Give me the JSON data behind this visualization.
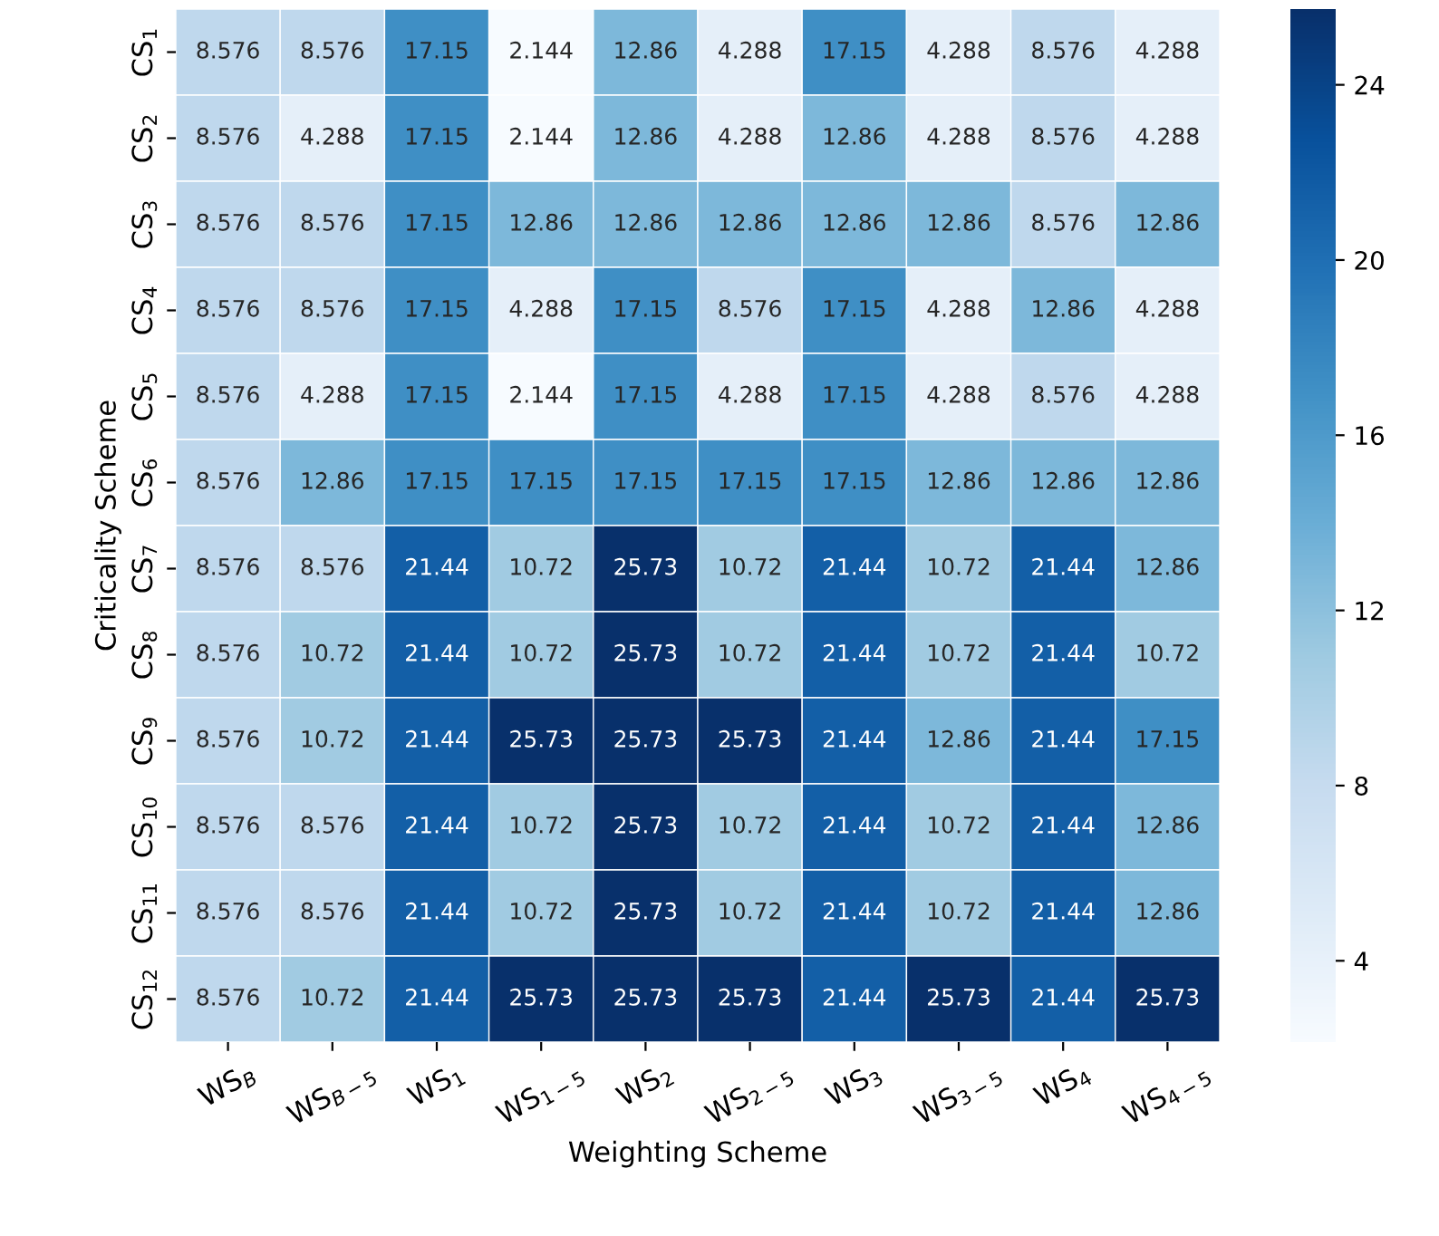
{
  "chart_data": {
    "type": "heatmap",
    "xlabel": "Weighting Scheme",
    "ylabel": "Criticality Scheme",
    "categories": [
      "WS$_{B}$",
      "WS$_{B−5}$",
      "WS$_{1}$",
      "WS$_{1−5}$",
      "WS$_{2}$",
      "WS$_{2−5}$",
      "WS$_{3}$",
      "WS$_{3−5}$",
      "WS$_{4}$",
      "WS$_{4−5}$"
    ],
    "y_categories": [
      "CS$_{1}$",
      "CS$_{2}$",
      "CS$_{3}$",
      "CS$_{4}$",
      "CS$_{5}$",
      "CS$_{6}$",
      "CS$_{7}$",
      "CS$_{8}$",
      "CS$_{9}$",
      "CS$_{10}$",
      "CS$_{11}$",
      "CS$_{12}$"
    ],
    "cells": [
      [
        8.576,
        8.576,
        17.15,
        2.144,
        12.86,
        4.288,
        17.15,
        4.288,
        8.576,
        4.288
      ],
      [
        8.576,
        4.288,
        17.15,
        2.144,
        12.86,
        4.288,
        12.86,
        4.288,
        8.576,
        4.288
      ],
      [
        8.576,
        8.576,
        17.15,
        12.86,
        12.86,
        12.86,
        12.86,
        12.86,
        8.576,
        12.86
      ],
      [
        8.576,
        8.576,
        17.15,
        4.288,
        17.15,
        8.576,
        17.15,
        4.288,
        12.86,
        4.288
      ],
      [
        8.576,
        4.288,
        17.15,
        2.144,
        17.15,
        4.288,
        17.15,
        4.288,
        8.576,
        4.288
      ],
      [
        8.576,
        12.86,
        17.15,
        17.15,
        17.15,
        17.15,
        17.15,
        12.86,
        12.86,
        12.86
      ],
      [
        8.576,
        8.576,
        21.44,
        10.72,
        25.73,
        10.72,
        21.44,
        10.72,
        21.44,
        12.86
      ],
      [
        8.576,
        10.72,
        21.44,
        10.72,
        25.73,
        10.72,
        21.44,
        10.72,
        21.44,
        10.72
      ],
      [
        8.576,
        10.72,
        21.44,
        25.73,
        25.73,
        25.73,
        21.44,
        12.86,
        21.44,
        17.15
      ],
      [
        8.576,
        8.576,
        21.44,
        10.72,
        25.73,
        10.72,
        21.44,
        10.72,
        21.44,
        12.86
      ],
      [
        8.576,
        8.576,
        21.44,
        10.72,
        25.73,
        10.72,
        21.44,
        10.72,
        21.44,
        12.86
      ],
      [
        8.576,
        10.72,
        21.44,
        25.73,
        25.73,
        25.73,
        21.44,
        25.73,
        21.44,
        25.73
      ]
    ],
    "data_labels": true,
    "clim": [
      2.144,
      25.73
    ],
    "cticks": [
      4,
      8,
      12,
      16,
      20,
      24
    ]
  }
}
